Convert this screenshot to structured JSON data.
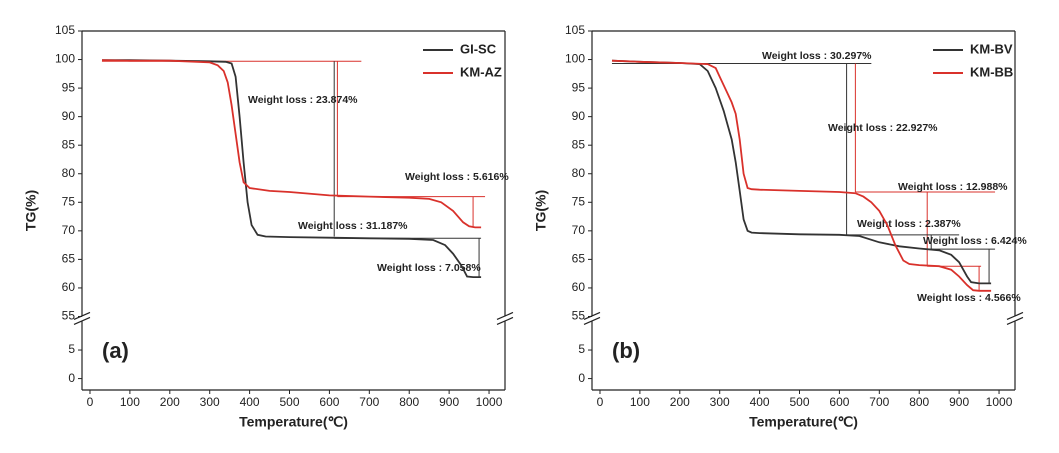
{
  "chart_data": [
    {
      "type": "line",
      "label": "(a)",
      "x_label": "Temperature(℃)",
      "y_label": "TG(%)",
      "xlim": [
        -20,
        1040
      ],
      "xticks": [
        0,
        100,
        200,
        300,
        400,
        500,
        600,
        700,
        800,
        900,
        1000
      ],
      "ylim": [
        -2,
        105
      ],
      "y_break": [
        10,
        55
      ],
      "yticks": [
        0,
        5,
        55,
        60,
        65,
        70,
        75,
        80,
        85,
        90,
        95,
        100,
        105
      ],
      "legend": "upper right",
      "series": [
        {
          "name": "GI-SC",
          "color": "#333333",
          "x": [
            30,
            100,
            200,
            300,
            340,
            355,
            365,
            375,
            385,
            395,
            405,
            420,
            440,
            500,
            600,
            700,
            800,
            860,
            890,
            910,
            930,
            945,
            960,
            980
          ],
          "values": [
            99.9,
            99.9,
            99.8,
            99.7,
            99.6,
            99.3,
            97,
            90,
            82,
            75,
            71,
            69.3,
            69,
            68.9,
            68.8,
            68.7,
            68.6,
            68.4,
            67.5,
            66,
            64,
            62,
            61.9,
            61.9
          ]
        },
        {
          "name": "KM-AZ",
          "color": "#d9312b",
          "x": [
            30,
            100,
            200,
            300,
            320,
            335,
            345,
            355,
            365,
            375,
            385,
            400,
            450,
            500,
            600,
            700,
            800,
            850,
            880,
            910,
            935,
            950,
            965,
            980
          ],
          "values": [
            99.9,
            99.8,
            99.8,
            99.5,
            99,
            98,
            96,
            92,
            87,
            82,
            78.5,
            77.5,
            77,
            76.8,
            76.2,
            76,
            75.8,
            75.6,
            75,
            73.5,
            71.5,
            70.8,
            70.6,
            70.6
          ]
        }
      ],
      "annotations": [
        {
          "text": "Weight loss :  23.874%",
          "color": "#d9312b",
          "x": 620,
          "y": [
            99.7,
            76
          ],
          "span": [
            30,
            680
          ]
        },
        {
          "text": "Weight loss :  5.616%",
          "color": "#d9312b",
          "x": 960,
          "y": [
            76,
            70.6
          ],
          "span": [
            620,
            990
          ]
        },
        {
          "text": "Weight loss :  31.187%",
          "color": "#333333",
          "x": 612,
          "y": [
            99.7,
            69
          ]
        },
        {
          "text": "Weight loss :  7.058%",
          "color": "#333333",
          "x": 975,
          "y": [
            68.7,
            61.9
          ],
          "span": [
            612,
            980
          ]
        }
      ]
    },
    {
      "type": "line",
      "label": "(b)",
      "x_label": "Temperature(℃)",
      "y_label": "TG(%)",
      "xlim": [
        -20,
        1040
      ],
      "xticks": [
        0,
        100,
        200,
        300,
        400,
        500,
        600,
        700,
        800,
        900,
        1000
      ],
      "ylim": [
        -2,
        105
      ],
      "y_break": [
        10,
        55
      ],
      "yticks": [
        0,
        5,
        55,
        60,
        65,
        70,
        75,
        80,
        85,
        90,
        95,
        100,
        105
      ],
      "legend": "upper right",
      "series": [
        {
          "name": "KM-BV",
          "color": "#333333",
          "x": [
            30,
            100,
            200,
            250,
            270,
            290,
            300,
            310,
            320,
            330,
            340,
            350,
            360,
            370,
            380,
            400,
            500,
            600,
            650,
            700,
            750,
            800,
            850,
            880,
            900,
            920,
            930,
            950,
            980
          ],
          "values": [
            99.8,
            99.6,
            99.4,
            99.2,
            98,
            95,
            93,
            91,
            88.5,
            86,
            82,
            77,
            72,
            70,
            69.7,
            69.6,
            69.4,
            69.3,
            69.1,
            68,
            67.3,
            66.9,
            66.6,
            65.8,
            64.5,
            62,
            61,
            60.8,
            60.8
          ]
        },
        {
          "name": "KM-BB",
          "color": "#d9312b",
          "x": [
            30,
            100,
            200,
            270,
            290,
            300,
            310,
            320,
            330,
            340,
            350,
            360,
            370,
            380,
            400,
            500,
            600,
            640,
            660,
            680,
            700,
            720,
            740,
            760,
            775,
            800,
            850,
            880,
            900,
            920,
            935,
            950,
            980
          ],
          "values": [
            99.8,
            99.6,
            99.4,
            99.2,
            98.5,
            97,
            95.5,
            94,
            92.5,
            90.5,
            86,
            80,
            77.5,
            77.3,
            77.2,
            77,
            76.8,
            76.6,
            76,
            75,
            73.5,
            71,
            67.5,
            64.8,
            64.2,
            64,
            63.8,
            63.2,
            62,
            60.5,
            59.6,
            59.5,
            59.5
          ]
        }
      ],
      "annotations": [
        {
          "text": "Weight loss :  30.297%",
          "color": "#333333",
          "x": 618,
          "y": [
            99.3,
            69.3
          ],
          "span": [
            30,
            680
          ]
        },
        {
          "text": "Weight loss :  22.927%",
          "color": "#d9312b",
          "x": 640,
          "y": [
            99.3,
            76.8
          ]
        },
        {
          "text": "Weight loss :  12.988%",
          "color": "#d9312b",
          "x": 820,
          "y": [
            76.8,
            64
          ],
          "span": [
            640,
            990
          ]
        },
        {
          "text": "Weight loss :  2.387%",
          "color": "#333333",
          "x": 830,
          "y": [
            69.3,
            66.8
          ],
          "span": [
            618,
            900
          ]
        },
        {
          "text": "Weight loss :  6.424%",
          "color": "#333333",
          "x": 975,
          "y": [
            66.8,
            60.8
          ],
          "span": [
            820,
            990
          ]
        },
        {
          "text": "Weight loss :  4.566%",
          "color": "#d9312b",
          "x": 950,
          "y": [
            63.8,
            59.5
          ],
          "span": [
            820,
            955
          ]
        }
      ]
    }
  ]
}
